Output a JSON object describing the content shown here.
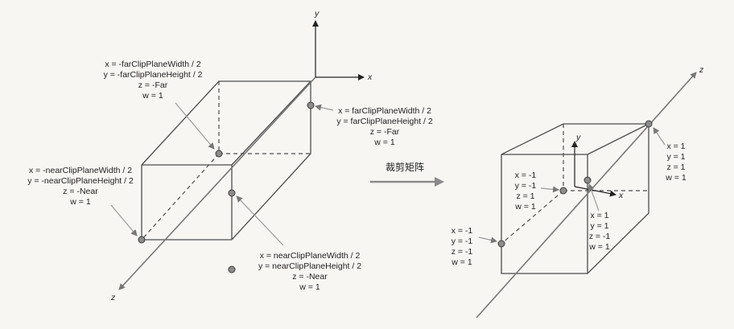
{
  "left_diagram": {
    "axes": {
      "x": "x",
      "y": "y",
      "z": "z"
    },
    "labels": {
      "far_top_left": [
        "x = -farClipPlaneWidth / 2",
        "y = -farClipPlaneHeight / 2",
        "z = -Far",
        "w = 1"
      ],
      "far_right": [
        "x = farClipPlaneWidth / 2",
        "y = farClipPlaneHeight / 2",
        "z = -Far",
        "w = 1"
      ],
      "near_left": [
        "x = -nearClipPlaneWidth / 2",
        "y = -nearClipPlaneHeight / 2",
        "z = -Near",
        "w = 1"
      ],
      "near_bottom": [
        "x = nearClipPlaneWidth / 2",
        "y = nearClipPlaneHeight / 2",
        "z = -Near",
        "w = 1"
      ]
    }
  },
  "transform": {
    "label": "裁剪矩阵"
  },
  "right_diagram": {
    "axes": {
      "x": "x",
      "y": "y",
      "z": "z"
    },
    "labels": {
      "far_right": [
        "x = 1",
        "y = 1",
        "z = 1",
        "w = 1"
      ],
      "inner_left": [
        "x = -1",
        "y = -1",
        "z = 1",
        "w = 1"
      ],
      "inner_below": [
        "x = 1",
        "y = 1",
        "z = -1",
        "w = 1"
      ],
      "near_left": [
        "x = -1",
        "y = -1",
        "z = -1",
        "w = 1"
      ]
    }
  },
  "colors": {
    "arrow": "#8a8a8a",
    "vertex": "#8c8c8c",
    "lines": "#4d4d4d"
  }
}
